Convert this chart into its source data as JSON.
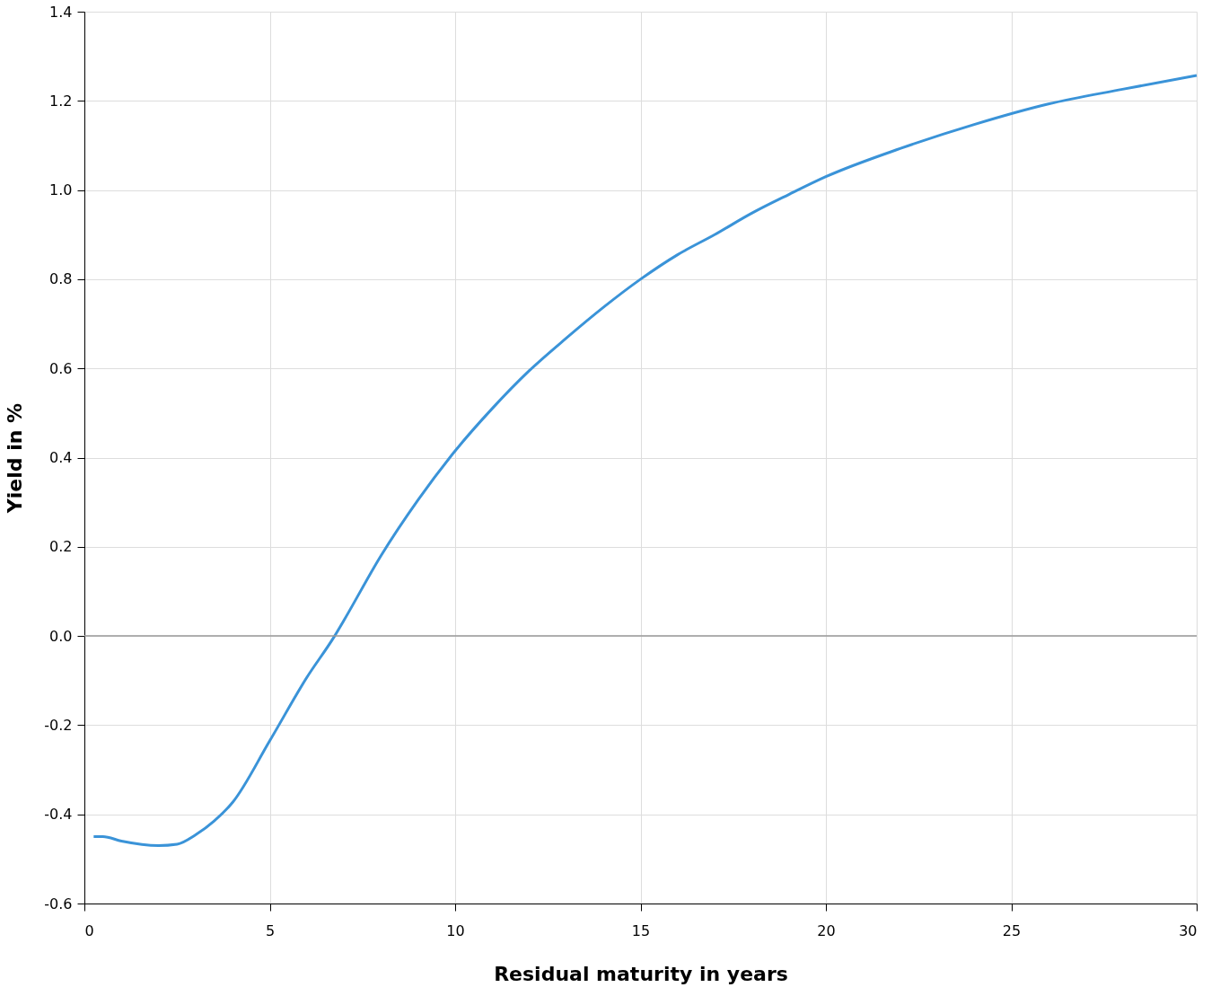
{
  "chart_data": {
    "type": "line",
    "xlabel": "Residual maturity in years",
    "ylabel": "Yield in %",
    "x": [
      0.25,
      0.5,
      1,
      2,
      2.5,
      3,
      3.5,
      4,
      5,
      6,
      6.75,
      7,
      8,
      9,
      10,
      11,
      12,
      13,
      14,
      15,
      16,
      17,
      18,
      19,
      20,
      22,
      24,
      26,
      28,
      30
    ],
    "series": [
      {
        "color": "#3a93d8",
        "values": [
          -0.45,
          -0.45,
          -0.46,
          -0.47,
          -0.467,
          -0.446,
          -0.415,
          -0.373,
          -0.235,
          -0.093,
          0.0,
          0.035,
          0.18,
          0.305,
          0.415,
          0.51,
          0.595,
          0.668,
          0.737,
          0.8,
          0.855,
          0.9,
          0.948,
          0.99,
          1.03,
          1.093,
          1.147,
          1.193,
          1.226,
          1.257
        ]
      }
    ],
    "xlim": [
      0,
      30
    ],
    "xticks": [
      0,
      5,
      10,
      15,
      20,
      25,
      30
    ],
    "ylim": [
      -0.6,
      1.4
    ],
    "yticks": [
      -0.6,
      -0.4,
      -0.2,
      {
        "value": 0,
        "label": "0.0"
      },
      0.2,
      0.4,
      0.6,
      0.8,
      {
        "value": 1,
        "label": "1.0"
      },
      1.2,
      1.4
    ],
    "ref_lines": [
      {
        "axis": "y",
        "value": 0,
        "color": "#999999"
      }
    ],
    "grid": true,
    "marker": "none",
    "line_style": "solid"
  }
}
